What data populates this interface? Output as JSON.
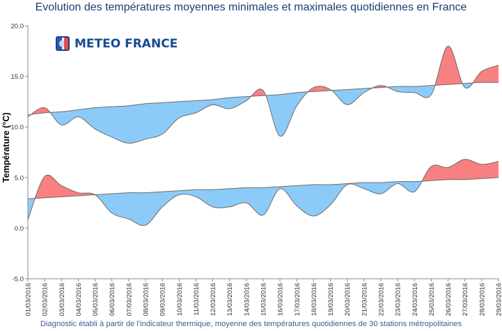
{
  "title": "Evolution des températures moyennes minimales et maximales quotidiennes en France",
  "footer": "Diagnostic établi à partir de l'indicateur thermique, moyenne des températures quotidiennes de 30 stations métropolitaines",
  "logo_text": "METEO FRANCE",
  "colors": {
    "above": "#f88080",
    "below": "#8ccbf8",
    "stroke": "#6b6b6b",
    "axis": "#888888",
    "title": "#1a3d75",
    "logo": "#174a96"
  },
  "chart_data": {
    "type": "area",
    "title": "Evolution des températures moyennes minimales et maximales quotidiennes en France",
    "xlabel": "",
    "ylabel": "Température (°C)",
    "ylim": [
      -5,
      20
    ],
    "yticks": [
      "20.0",
      "15.0",
      "10.0",
      "5.0",
      "0.0",
      "-5.0"
    ],
    "grid": false,
    "x": [
      "01/03/2016",
      "02/03/2016",
      "03/03/2016",
      "04/03/2016",
      "05/03/2016",
      "06/03/2016",
      "07/03/2016",
      "08/03/2016",
      "09/03/2016",
      "10/03/2016",
      "11/03/2016",
      "12/03/2016",
      "13/03/2016",
      "14/03/2016",
      "15/03/2016",
      "16/03/2016",
      "17/03/2016",
      "18/03/2016",
      "19/03/2016",
      "20/03/2016",
      "21/03/2016",
      "22/03/2016",
      "23/03/2016",
      "24/03/2016",
      "25/03/2016",
      "26/03/2016",
      "27/03/2016",
      "28/03/2016",
      "29/03/2016"
    ],
    "series": [
      {
        "values": [
          11.0,
          11.9,
          10.2,
          11.0,
          9.8,
          9.0,
          8.4,
          8.8,
          9.3,
          10.9,
          11.4,
          12.2,
          11.8,
          12.6,
          13.6,
          9.1,
          12.1,
          13.9,
          13.7,
          12.2,
          13.4,
          14.1,
          13.5,
          13.4,
          13.2,
          18.0,
          13.9,
          15.5,
          16.1
        ]
      },
      {
        "values": [
          11.2,
          11.4,
          11.5,
          11.7,
          11.9,
          12.0,
          12.1,
          12.3,
          12.4,
          12.5,
          12.6,
          12.7,
          12.9,
          13.0,
          13.1,
          13.2,
          13.4,
          13.5,
          13.6,
          13.7,
          13.8,
          13.9,
          14.0,
          14.0,
          14.1,
          14.2,
          14.3,
          14.4,
          14.4
        ]
      },
      {
        "values": [
          0.8,
          5.1,
          4.2,
          3.5,
          3.3,
          1.5,
          0.9,
          0.3,
          2.1,
          3.3,
          3.1,
          2.1,
          2.1,
          2.5,
          1.3,
          3.9,
          2.2,
          1.2,
          2.3,
          4.3,
          3.9,
          3.4,
          4.4,
          3.6,
          6.1,
          6.0,
          6.8,
          6.3,
          6.6
        ]
      },
      {
        "values": [
          2.9,
          3.0,
          3.1,
          3.2,
          3.3,
          3.4,
          3.5,
          3.5,
          3.6,
          3.7,
          3.8,
          3.8,
          3.9,
          4.0,
          4.0,
          4.1,
          4.2,
          4.3,
          4.3,
          4.4,
          4.5,
          4.5,
          4.6,
          4.6,
          4.7,
          4.8,
          4.8,
          4.9,
          5.0
        ]
      }
    ]
  }
}
